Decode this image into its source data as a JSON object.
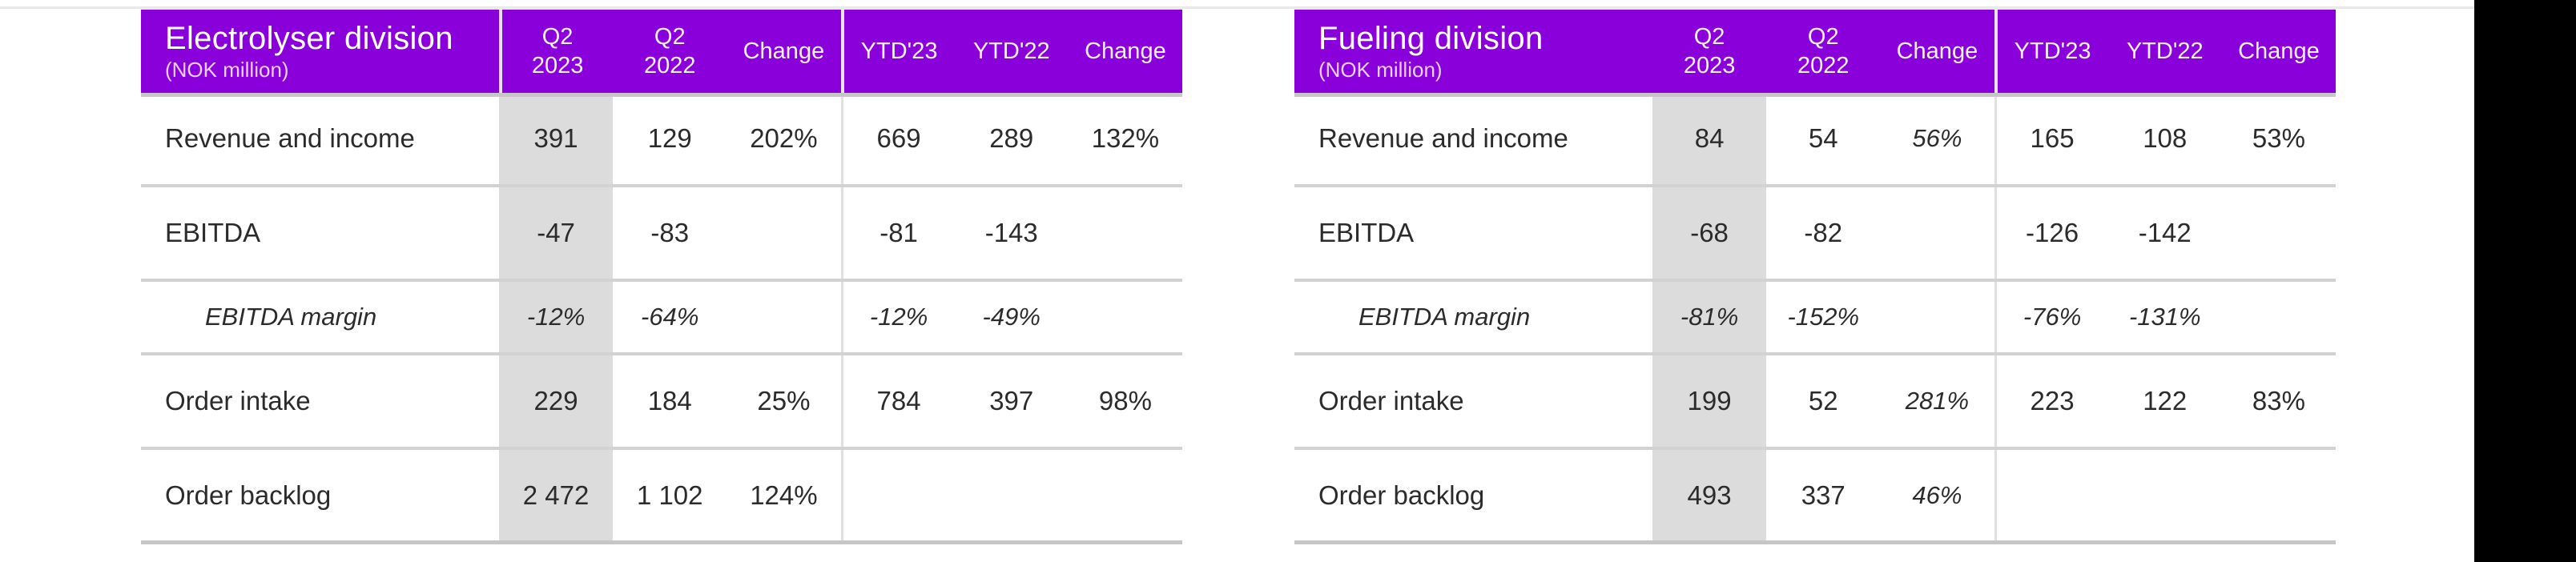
{
  "page": {
    "colors": {
      "accent_purple": "#8a00da",
      "gray_column": "#dcdcdc",
      "row_border": "#d2d2d2",
      "header_shadow": "#c7c7c7",
      "black_bar": "#000000",
      "body_text": "#2b2b2b",
      "header_text": "#ffffff"
    }
  },
  "tables": [
    {
      "title": "Electrolyser division",
      "subtitle": "(NOK million)",
      "columns": [
        {
          "line1": "Q2",
          "line2": "2023"
        },
        {
          "line1": "Q2",
          "line2": "2022"
        },
        {
          "line1": "Change",
          "line2": ""
        },
        {
          "line1": "YTD'23",
          "line2": ""
        },
        {
          "line1": "YTD'22",
          "line2": ""
        },
        {
          "line1": "Change",
          "line2": ""
        }
      ],
      "rows": [
        {
          "label": "Revenue and income",
          "sub": false,
          "values": [
            "391",
            "129",
            "202%",
            "669",
            "289",
            "132%"
          ],
          "italic_cols": []
        },
        {
          "label": "EBITDA",
          "sub": false,
          "values": [
            "-47",
            "-83",
            "",
            "-81",
            "-143",
            ""
          ],
          "italic_cols": []
        },
        {
          "label": "EBITDA margin",
          "sub": true,
          "values": [
            "-12%",
            "-64%",
            "",
            "-12%",
            "-49%",
            ""
          ],
          "italic_cols": [
            0,
            1,
            2,
            3,
            4,
            5
          ]
        },
        {
          "label": "Order intake",
          "sub": false,
          "values": [
            "229",
            "184",
            "25%",
            "784",
            "397",
            "98%"
          ],
          "italic_cols": []
        },
        {
          "label": "Order backlog",
          "sub": false,
          "values": [
            "2 472",
            "1 102",
            "124%",
            "",
            "",
            ""
          ],
          "italic_cols": []
        }
      ]
    },
    {
      "title": "Fueling division",
      "subtitle": "(NOK million)",
      "columns": [
        {
          "line1": "Q2",
          "line2": "2023"
        },
        {
          "line1": "Q2",
          "line2": "2022"
        },
        {
          "line1": "Change",
          "line2": ""
        },
        {
          "line1": "YTD'23",
          "line2": ""
        },
        {
          "line1": "YTD'22",
          "line2": ""
        },
        {
          "line1": "Change",
          "line2": ""
        }
      ],
      "rows": [
        {
          "label": "Revenue and income",
          "sub": false,
          "values": [
            "84",
            "54",
            "56%",
            "165",
            "108",
            "53%"
          ],
          "italic_cols": [
            2
          ]
        },
        {
          "label": "EBITDA",
          "sub": false,
          "values": [
            "-68",
            "-82",
            "",
            "-126",
            "-142",
            ""
          ],
          "italic_cols": []
        },
        {
          "label": "EBITDA margin",
          "sub": true,
          "values": [
            "-81%",
            "-152%",
            "",
            "-76%",
            "-131%",
            ""
          ],
          "italic_cols": [
            0,
            1,
            2,
            3,
            4,
            5
          ]
        },
        {
          "label": "Order intake",
          "sub": false,
          "values": [
            "199",
            "52",
            "281%",
            "223",
            "122",
            "83%"
          ],
          "italic_cols": [
            2
          ]
        },
        {
          "label": "Order backlog",
          "sub": false,
          "values": [
            "493",
            "337",
            "46%",
            "",
            "",
            ""
          ],
          "italic_cols": [
            2
          ]
        }
      ]
    }
  ]
}
